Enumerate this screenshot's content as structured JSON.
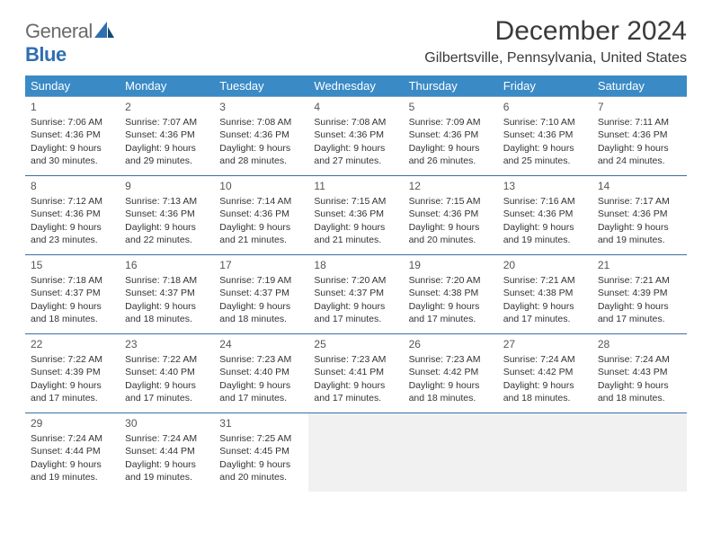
{
  "logo": {
    "general": "General",
    "blue": "Blue"
  },
  "title": "December 2024",
  "subtitle": "Gilbertsville, Pennsylvania, United States",
  "colors": {
    "header_bg": "#3a8ac6",
    "header_text": "#ffffff",
    "row_border": "#3a6ea5",
    "empty_bg": "#f1f1f1",
    "logo_blue": "#2f6fb0",
    "logo_gray": "#6a6a6a"
  },
  "day_headers": [
    "Sunday",
    "Monday",
    "Tuesday",
    "Wednesday",
    "Thursday",
    "Friday",
    "Saturday"
  ],
  "weeks": [
    [
      {
        "n": "1",
        "sr": "Sunrise: 7:06 AM",
        "ss": "Sunset: 4:36 PM",
        "d1": "Daylight: 9 hours",
        "d2": "and 30 minutes."
      },
      {
        "n": "2",
        "sr": "Sunrise: 7:07 AM",
        "ss": "Sunset: 4:36 PM",
        "d1": "Daylight: 9 hours",
        "d2": "and 29 minutes."
      },
      {
        "n": "3",
        "sr": "Sunrise: 7:08 AM",
        "ss": "Sunset: 4:36 PM",
        "d1": "Daylight: 9 hours",
        "d2": "and 28 minutes."
      },
      {
        "n": "4",
        "sr": "Sunrise: 7:08 AM",
        "ss": "Sunset: 4:36 PM",
        "d1": "Daylight: 9 hours",
        "d2": "and 27 minutes."
      },
      {
        "n": "5",
        "sr": "Sunrise: 7:09 AM",
        "ss": "Sunset: 4:36 PM",
        "d1": "Daylight: 9 hours",
        "d2": "and 26 minutes."
      },
      {
        "n": "6",
        "sr": "Sunrise: 7:10 AM",
        "ss": "Sunset: 4:36 PM",
        "d1": "Daylight: 9 hours",
        "d2": "and 25 minutes."
      },
      {
        "n": "7",
        "sr": "Sunrise: 7:11 AM",
        "ss": "Sunset: 4:36 PM",
        "d1": "Daylight: 9 hours",
        "d2": "and 24 minutes."
      }
    ],
    [
      {
        "n": "8",
        "sr": "Sunrise: 7:12 AM",
        "ss": "Sunset: 4:36 PM",
        "d1": "Daylight: 9 hours",
        "d2": "and 23 minutes."
      },
      {
        "n": "9",
        "sr": "Sunrise: 7:13 AM",
        "ss": "Sunset: 4:36 PM",
        "d1": "Daylight: 9 hours",
        "d2": "and 22 minutes."
      },
      {
        "n": "10",
        "sr": "Sunrise: 7:14 AM",
        "ss": "Sunset: 4:36 PM",
        "d1": "Daylight: 9 hours",
        "d2": "and 21 minutes."
      },
      {
        "n": "11",
        "sr": "Sunrise: 7:15 AM",
        "ss": "Sunset: 4:36 PM",
        "d1": "Daylight: 9 hours",
        "d2": "and 21 minutes."
      },
      {
        "n": "12",
        "sr": "Sunrise: 7:15 AM",
        "ss": "Sunset: 4:36 PM",
        "d1": "Daylight: 9 hours",
        "d2": "and 20 minutes."
      },
      {
        "n": "13",
        "sr": "Sunrise: 7:16 AM",
        "ss": "Sunset: 4:36 PM",
        "d1": "Daylight: 9 hours",
        "d2": "and 19 minutes."
      },
      {
        "n": "14",
        "sr": "Sunrise: 7:17 AM",
        "ss": "Sunset: 4:36 PM",
        "d1": "Daylight: 9 hours",
        "d2": "and 19 minutes."
      }
    ],
    [
      {
        "n": "15",
        "sr": "Sunrise: 7:18 AM",
        "ss": "Sunset: 4:37 PM",
        "d1": "Daylight: 9 hours",
        "d2": "and 18 minutes."
      },
      {
        "n": "16",
        "sr": "Sunrise: 7:18 AM",
        "ss": "Sunset: 4:37 PM",
        "d1": "Daylight: 9 hours",
        "d2": "and 18 minutes."
      },
      {
        "n": "17",
        "sr": "Sunrise: 7:19 AM",
        "ss": "Sunset: 4:37 PM",
        "d1": "Daylight: 9 hours",
        "d2": "and 18 minutes."
      },
      {
        "n": "18",
        "sr": "Sunrise: 7:20 AM",
        "ss": "Sunset: 4:37 PM",
        "d1": "Daylight: 9 hours",
        "d2": "and 17 minutes."
      },
      {
        "n": "19",
        "sr": "Sunrise: 7:20 AM",
        "ss": "Sunset: 4:38 PM",
        "d1": "Daylight: 9 hours",
        "d2": "and 17 minutes."
      },
      {
        "n": "20",
        "sr": "Sunrise: 7:21 AM",
        "ss": "Sunset: 4:38 PM",
        "d1": "Daylight: 9 hours",
        "d2": "and 17 minutes."
      },
      {
        "n": "21",
        "sr": "Sunrise: 7:21 AM",
        "ss": "Sunset: 4:39 PM",
        "d1": "Daylight: 9 hours",
        "d2": "and 17 minutes."
      }
    ],
    [
      {
        "n": "22",
        "sr": "Sunrise: 7:22 AM",
        "ss": "Sunset: 4:39 PM",
        "d1": "Daylight: 9 hours",
        "d2": "and 17 minutes."
      },
      {
        "n": "23",
        "sr": "Sunrise: 7:22 AM",
        "ss": "Sunset: 4:40 PM",
        "d1": "Daylight: 9 hours",
        "d2": "and 17 minutes."
      },
      {
        "n": "24",
        "sr": "Sunrise: 7:23 AM",
        "ss": "Sunset: 4:40 PM",
        "d1": "Daylight: 9 hours",
        "d2": "and 17 minutes."
      },
      {
        "n": "25",
        "sr": "Sunrise: 7:23 AM",
        "ss": "Sunset: 4:41 PM",
        "d1": "Daylight: 9 hours",
        "d2": "and 17 minutes."
      },
      {
        "n": "26",
        "sr": "Sunrise: 7:23 AM",
        "ss": "Sunset: 4:42 PM",
        "d1": "Daylight: 9 hours",
        "d2": "and 18 minutes."
      },
      {
        "n": "27",
        "sr": "Sunrise: 7:24 AM",
        "ss": "Sunset: 4:42 PM",
        "d1": "Daylight: 9 hours",
        "d2": "and 18 minutes."
      },
      {
        "n": "28",
        "sr": "Sunrise: 7:24 AM",
        "ss": "Sunset: 4:43 PM",
        "d1": "Daylight: 9 hours",
        "d2": "and 18 minutes."
      }
    ],
    [
      {
        "n": "29",
        "sr": "Sunrise: 7:24 AM",
        "ss": "Sunset: 4:44 PM",
        "d1": "Daylight: 9 hours",
        "d2": "and 19 minutes."
      },
      {
        "n": "30",
        "sr": "Sunrise: 7:24 AM",
        "ss": "Sunset: 4:44 PM",
        "d1": "Daylight: 9 hours",
        "d2": "and 19 minutes."
      },
      {
        "n": "31",
        "sr": "Sunrise: 7:25 AM",
        "ss": "Sunset: 4:45 PM",
        "d1": "Daylight: 9 hours",
        "d2": "and 20 minutes."
      },
      {
        "empty": true
      },
      {
        "empty": true
      },
      {
        "empty": true
      },
      {
        "empty": true
      }
    ]
  ]
}
